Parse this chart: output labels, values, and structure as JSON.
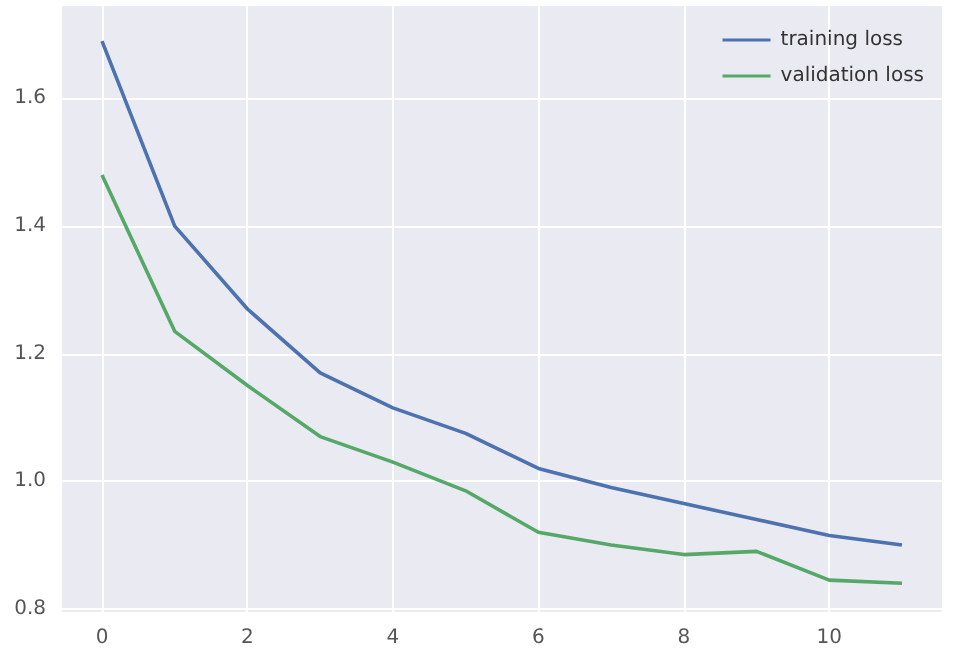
{
  "chart_data": {
    "type": "line",
    "x": [
      0,
      1,
      2,
      3,
      4,
      5,
      6,
      7,
      8,
      9,
      10,
      11
    ],
    "series": [
      {
        "name": "training loss",
        "color": "#4c72b0",
        "values": [
          1.69,
          1.4,
          1.27,
          1.17,
          1.115,
          1.075,
          1.02,
          0.99,
          0.965,
          0.94,
          0.915,
          0.9
        ]
      },
      {
        "name": "validation loss",
        "color": "#55a868",
        "values": [
          1.48,
          1.235,
          1.15,
          1.07,
          1.03,
          0.985,
          0.92,
          0.9,
          0.885,
          0.89,
          0.845,
          0.84
        ]
      }
    ],
    "xlim": [
      -0.55,
      11.55
    ],
    "xticks": [
      0,
      2,
      4,
      6,
      8,
      10
    ],
    "ylim": [
      0.795,
      1.745
    ],
    "yticks": [
      {
        "value": 0.8,
        "label": "0.8"
      },
      {
        "value": 1.0,
        "label": "1.0"
      },
      {
        "value": 1.2,
        "label": "1.2"
      },
      {
        "value": 1.4,
        "label": "1.4"
      },
      {
        "value": 1.6,
        "label": "1.6"
      }
    ],
    "grid": true,
    "legend": "top right",
    "marker": "none",
    "line_style": "solid"
  }
}
